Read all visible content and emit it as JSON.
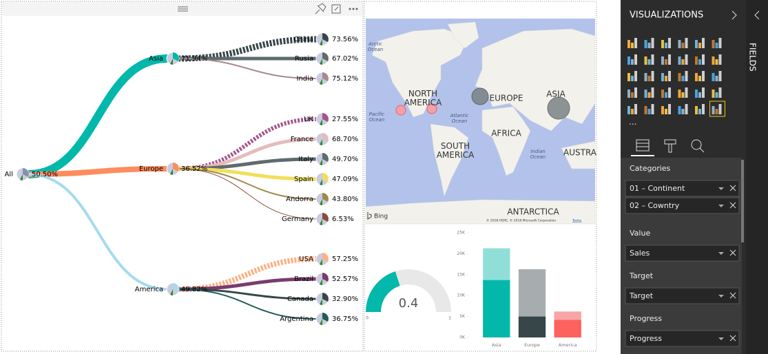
{
  "tree": {
    "root": {
      "label": "All",
      "value": "50.50%"
    },
    "groups": [
      {
        "label": "Asia",
        "value": "71.94%",
        "color": "#01b8aa",
        "children": [
          {
            "label": "China",
            "value": "73.56%",
            "color": "#374649"
          },
          {
            "label": "Rusia",
            "value": "67.02%",
            "color": "#5f6b6d"
          },
          {
            "label": "India",
            "value": "75.12%",
            "color": "#a7898f"
          }
        ]
      },
      {
        "label": "Europe",
        "value": "36.52%",
        "color": "#fd8d5f",
        "children": [
          {
            "label": "UK",
            "value": "27.55%",
            "color": "#a4558c"
          },
          {
            "label": "France",
            "value": "68.70%",
            "color": "#e4bcbc"
          },
          {
            "label": "Italy",
            "value": "49.70%",
            "color": "#5f6b6d"
          },
          {
            "label": "Spain",
            "value": "47.09%",
            "color": "#f2de5b"
          },
          {
            "label": "Andorra",
            "value": "43.80%",
            "color": "#a08a4a"
          },
          {
            "label": "Germany",
            "value": "6.53%",
            "color": "#8b4a3a"
          }
        ]
      },
      {
        "label": "America",
        "value": "49.82%",
        "color": "#a6dbed",
        "children": [
          {
            "label": "USA",
            "value": "57.25%",
            "color": "#fdb083"
          },
          {
            "label": "Brazil",
            "value": "52.57%",
            "color": "#7a3b6f"
          },
          {
            "label": "Canada",
            "value": "32.90%",
            "color": "#374649"
          },
          {
            "label": "Argentina",
            "value": "36.75%",
            "color": "#1f5c57"
          }
        ]
      }
    ]
  },
  "map": {
    "labels": [
      "Arctic Ocean",
      "NORTH AMERICA",
      "EUROPE",
      "ASIA",
      "Pacific Ocean",
      "Atlantic Ocean",
      "AFRICA",
      "SOUTH AMERICA",
      "Indian Ocean",
      "AUSTRA",
      "ANTARCTICA"
    ],
    "logo": "Bing",
    "copyright": "© 2018 HERE, © 2018 Microsoft Corporation",
    "terms": "Terms"
  },
  "gauge": {
    "type": "gauge",
    "value": 0.4,
    "min": 0,
    "max": 1,
    "color": "#01b8aa"
  },
  "bar_chart": {
    "type": "bar",
    "categories": [
      "Asia",
      "Europe",
      "America"
    ],
    "series": [
      {
        "colors": [
          "#8fdfd8",
          "#a7adaf",
          "#f7a5a8"
        ],
        "values": [
          21300,
          16300,
          6200
        ]
      },
      {
        "colors": [
          "#01b8aa",
          "#374649",
          "#fd625e"
        ],
        "values": [
          13700,
          5000,
          4200
        ]
      }
    ],
    "ylim": [
      0,
      25000
    ],
    "yticks": [
      {
        "value": 0,
        "label": "0K"
      },
      {
        "value": 5000,
        "label": "5K"
      },
      {
        "value": 10000,
        "label": "10K"
      },
      {
        "value": 15000,
        "label": "15K"
      },
      {
        "value": 20000,
        "label": "20K"
      },
      {
        "value": 25000,
        "label": "25K"
      }
    ]
  },
  "pane": {
    "title": "VISUALIZATIONS",
    "fields_title": "FIELDS",
    "wells": [
      {
        "label": "Categories",
        "items": [
          "01 – Continent",
          "02 – Cowntry"
        ]
      },
      {
        "label": "Value",
        "items": [
          "Sales"
        ]
      },
      {
        "label": "Target",
        "items": [
          "Target"
        ]
      },
      {
        "label": "Progress",
        "items": [
          "Progress"
        ]
      }
    ]
  }
}
